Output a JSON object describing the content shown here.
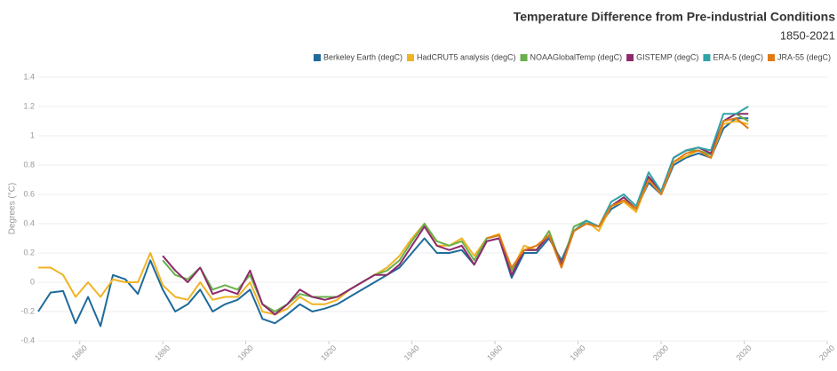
{
  "chart_data": {
    "type": "line",
    "title": "Temperature Difference from Pre-industrial Conditions",
    "subtitle": "1850-2021",
    "y_label": "Degrees (°C)",
    "x": [
      1850,
      1853,
      1856,
      1859,
      1862,
      1865,
      1868,
      1871,
      1874,
      1877,
      1880,
      1883,
      1886,
      1889,
      1892,
      1895,
      1898,
      1901,
      1904,
      1907,
      1910,
      1913,
      1916,
      1919,
      1922,
      1925,
      1928,
      1931,
      1934,
      1937,
      1940,
      1943,
      1946,
      1949,
      1952,
      1955,
      1958,
      1961,
      1964,
      1967,
      1970,
      1973,
      1976,
      1979,
      1982,
      1985,
      1988,
      1991,
      1994,
      1997,
      2000,
      2003,
      2006,
      2009,
      2012,
      2015,
      2018,
      2021
    ],
    "xlim": [
      1850,
      2040
    ],
    "xticks": [
      1860,
      1880,
      1900,
      1920,
      1940,
      1960,
      1980,
      2000,
      2020,
      2040
    ],
    "ylim": [
      -0.4,
      1.4
    ],
    "yticks": [
      -0.4,
      -0.2,
      0,
      0.2,
      0.4,
      0.6,
      0.8,
      1,
      1.2,
      1.4
    ],
    "grid": true,
    "legend": "top-right",
    "series": [
      {
        "name": "Berkeley Earth (degC)",
        "color": "#1f6b9a",
        "values": [
          -0.2,
          -0.07,
          -0.06,
          -0.28,
          -0.1,
          -0.3,
          0.05,
          0.02,
          -0.08,
          0.15,
          -0.05,
          -0.2,
          -0.15,
          -0.05,
          -0.2,
          -0.15,
          -0.12,
          -0.05,
          -0.25,
          -0.28,
          -0.22,
          -0.15,
          -0.2,
          -0.18,
          -0.15,
          -0.1,
          -0.05,
          0.0,
          0.05,
          0.1,
          0.2,
          0.3,
          0.2,
          0.2,
          0.22,
          0.12,
          0.28,
          0.3,
          0.03,
          0.2,
          0.2,
          0.3,
          0.15,
          0.35,
          0.4,
          0.38,
          0.5,
          0.55,
          0.5,
          0.68,
          0.6,
          0.8,
          0.85,
          0.88,
          0.85,
          1.05,
          1.12,
          1.12
        ]
      },
      {
        "name": "HadCRUT5 analysis (degC)",
        "color": "#f0b323",
        "values": [
          0.1,
          0.1,
          0.05,
          -0.1,
          0.0,
          -0.1,
          0.02,
          0.0,
          0.0,
          0.2,
          -0.02,
          -0.1,
          -0.12,
          0.0,
          -0.12,
          -0.1,
          -0.1,
          0.0,
          -0.2,
          -0.22,
          -0.18,
          -0.1,
          -0.15,
          -0.15,
          -0.12,
          -0.05,
          0.0,
          0.05,
          0.1,
          0.18,
          0.3,
          0.4,
          0.25,
          0.25,
          0.3,
          0.18,
          0.3,
          0.33,
          0.08,
          0.25,
          0.22,
          0.35,
          0.12,
          0.35,
          0.42,
          0.35,
          0.52,
          0.55,
          0.48,
          0.7,
          0.6,
          0.82,
          0.86,
          0.9,
          0.85,
          1.08,
          1.1,
          1.08
        ]
      },
      {
        "name": "NOAAGlobalTemp (degC)",
        "color": "#6ab04c",
        "values": [
          null,
          null,
          null,
          null,
          null,
          null,
          null,
          null,
          null,
          null,
          0.15,
          0.05,
          0.02,
          0.1,
          -0.05,
          -0.02,
          -0.05,
          0.05,
          -0.15,
          -0.2,
          -0.15,
          -0.08,
          -0.1,
          -0.1,
          -0.1,
          -0.05,
          0.0,
          0.05,
          0.08,
          0.15,
          0.28,
          0.4,
          0.28,
          0.25,
          0.28,
          0.15,
          0.3,
          0.32,
          0.08,
          0.22,
          0.22,
          0.35,
          0.12,
          0.38,
          0.42,
          0.38,
          0.52,
          0.58,
          0.5,
          0.72,
          0.62,
          0.85,
          0.9,
          0.9,
          0.87,
          1.1,
          1.15,
          1.1
        ]
      },
      {
        "name": "GISTEMP (degC)",
        "color": "#8e2a6b",
        "values": [
          null,
          null,
          null,
          null,
          null,
          null,
          null,
          null,
          null,
          null,
          0.18,
          0.08,
          0.0,
          0.1,
          -0.08,
          -0.05,
          -0.08,
          0.08,
          -0.15,
          -0.22,
          -0.15,
          -0.05,
          -0.1,
          -0.12,
          -0.1,
          -0.05,
          0.0,
          0.05,
          0.05,
          0.12,
          0.25,
          0.38,
          0.25,
          0.22,
          0.25,
          0.12,
          0.28,
          0.3,
          0.05,
          0.22,
          0.22,
          0.32,
          0.12,
          0.35,
          0.42,
          0.38,
          0.52,
          0.58,
          0.5,
          0.72,
          0.62,
          0.85,
          0.9,
          0.92,
          0.88,
          1.1,
          1.15,
          1.15
        ]
      },
      {
        "name": "ERA-5 (degC)",
        "color": "#2fa4a8",
        "values": [
          null,
          null,
          null,
          null,
          null,
          null,
          null,
          null,
          null,
          null,
          null,
          null,
          null,
          null,
          null,
          null,
          null,
          null,
          null,
          null,
          null,
          null,
          null,
          null,
          null,
          null,
          null,
          null,
          null,
          null,
          null,
          null,
          null,
          null,
          null,
          null,
          null,
          null,
          null,
          null,
          null,
          null,
          null,
          0.35,
          0.42,
          0.38,
          0.55,
          0.6,
          0.52,
          0.75,
          0.62,
          0.85,
          0.9,
          0.92,
          0.9,
          1.15,
          1.15,
          1.2
        ]
      },
      {
        "name": "JRA-55 (degC)",
        "color": "#e07b14",
        "values": [
          null,
          null,
          null,
          null,
          null,
          null,
          null,
          null,
          null,
          null,
          null,
          null,
          null,
          null,
          null,
          null,
          null,
          null,
          null,
          null,
          null,
          null,
          null,
          null,
          null,
          null,
          null,
          null,
          null,
          null,
          null,
          null,
          null,
          null,
          null,
          null,
          0.3,
          0.32,
          0.1,
          0.22,
          0.25,
          0.32,
          0.1,
          0.35,
          0.4,
          0.38,
          0.52,
          0.56,
          0.5,
          0.7,
          0.6,
          0.82,
          0.88,
          0.9,
          0.85,
          1.1,
          1.12,
          1.05
        ]
      }
    ]
  }
}
